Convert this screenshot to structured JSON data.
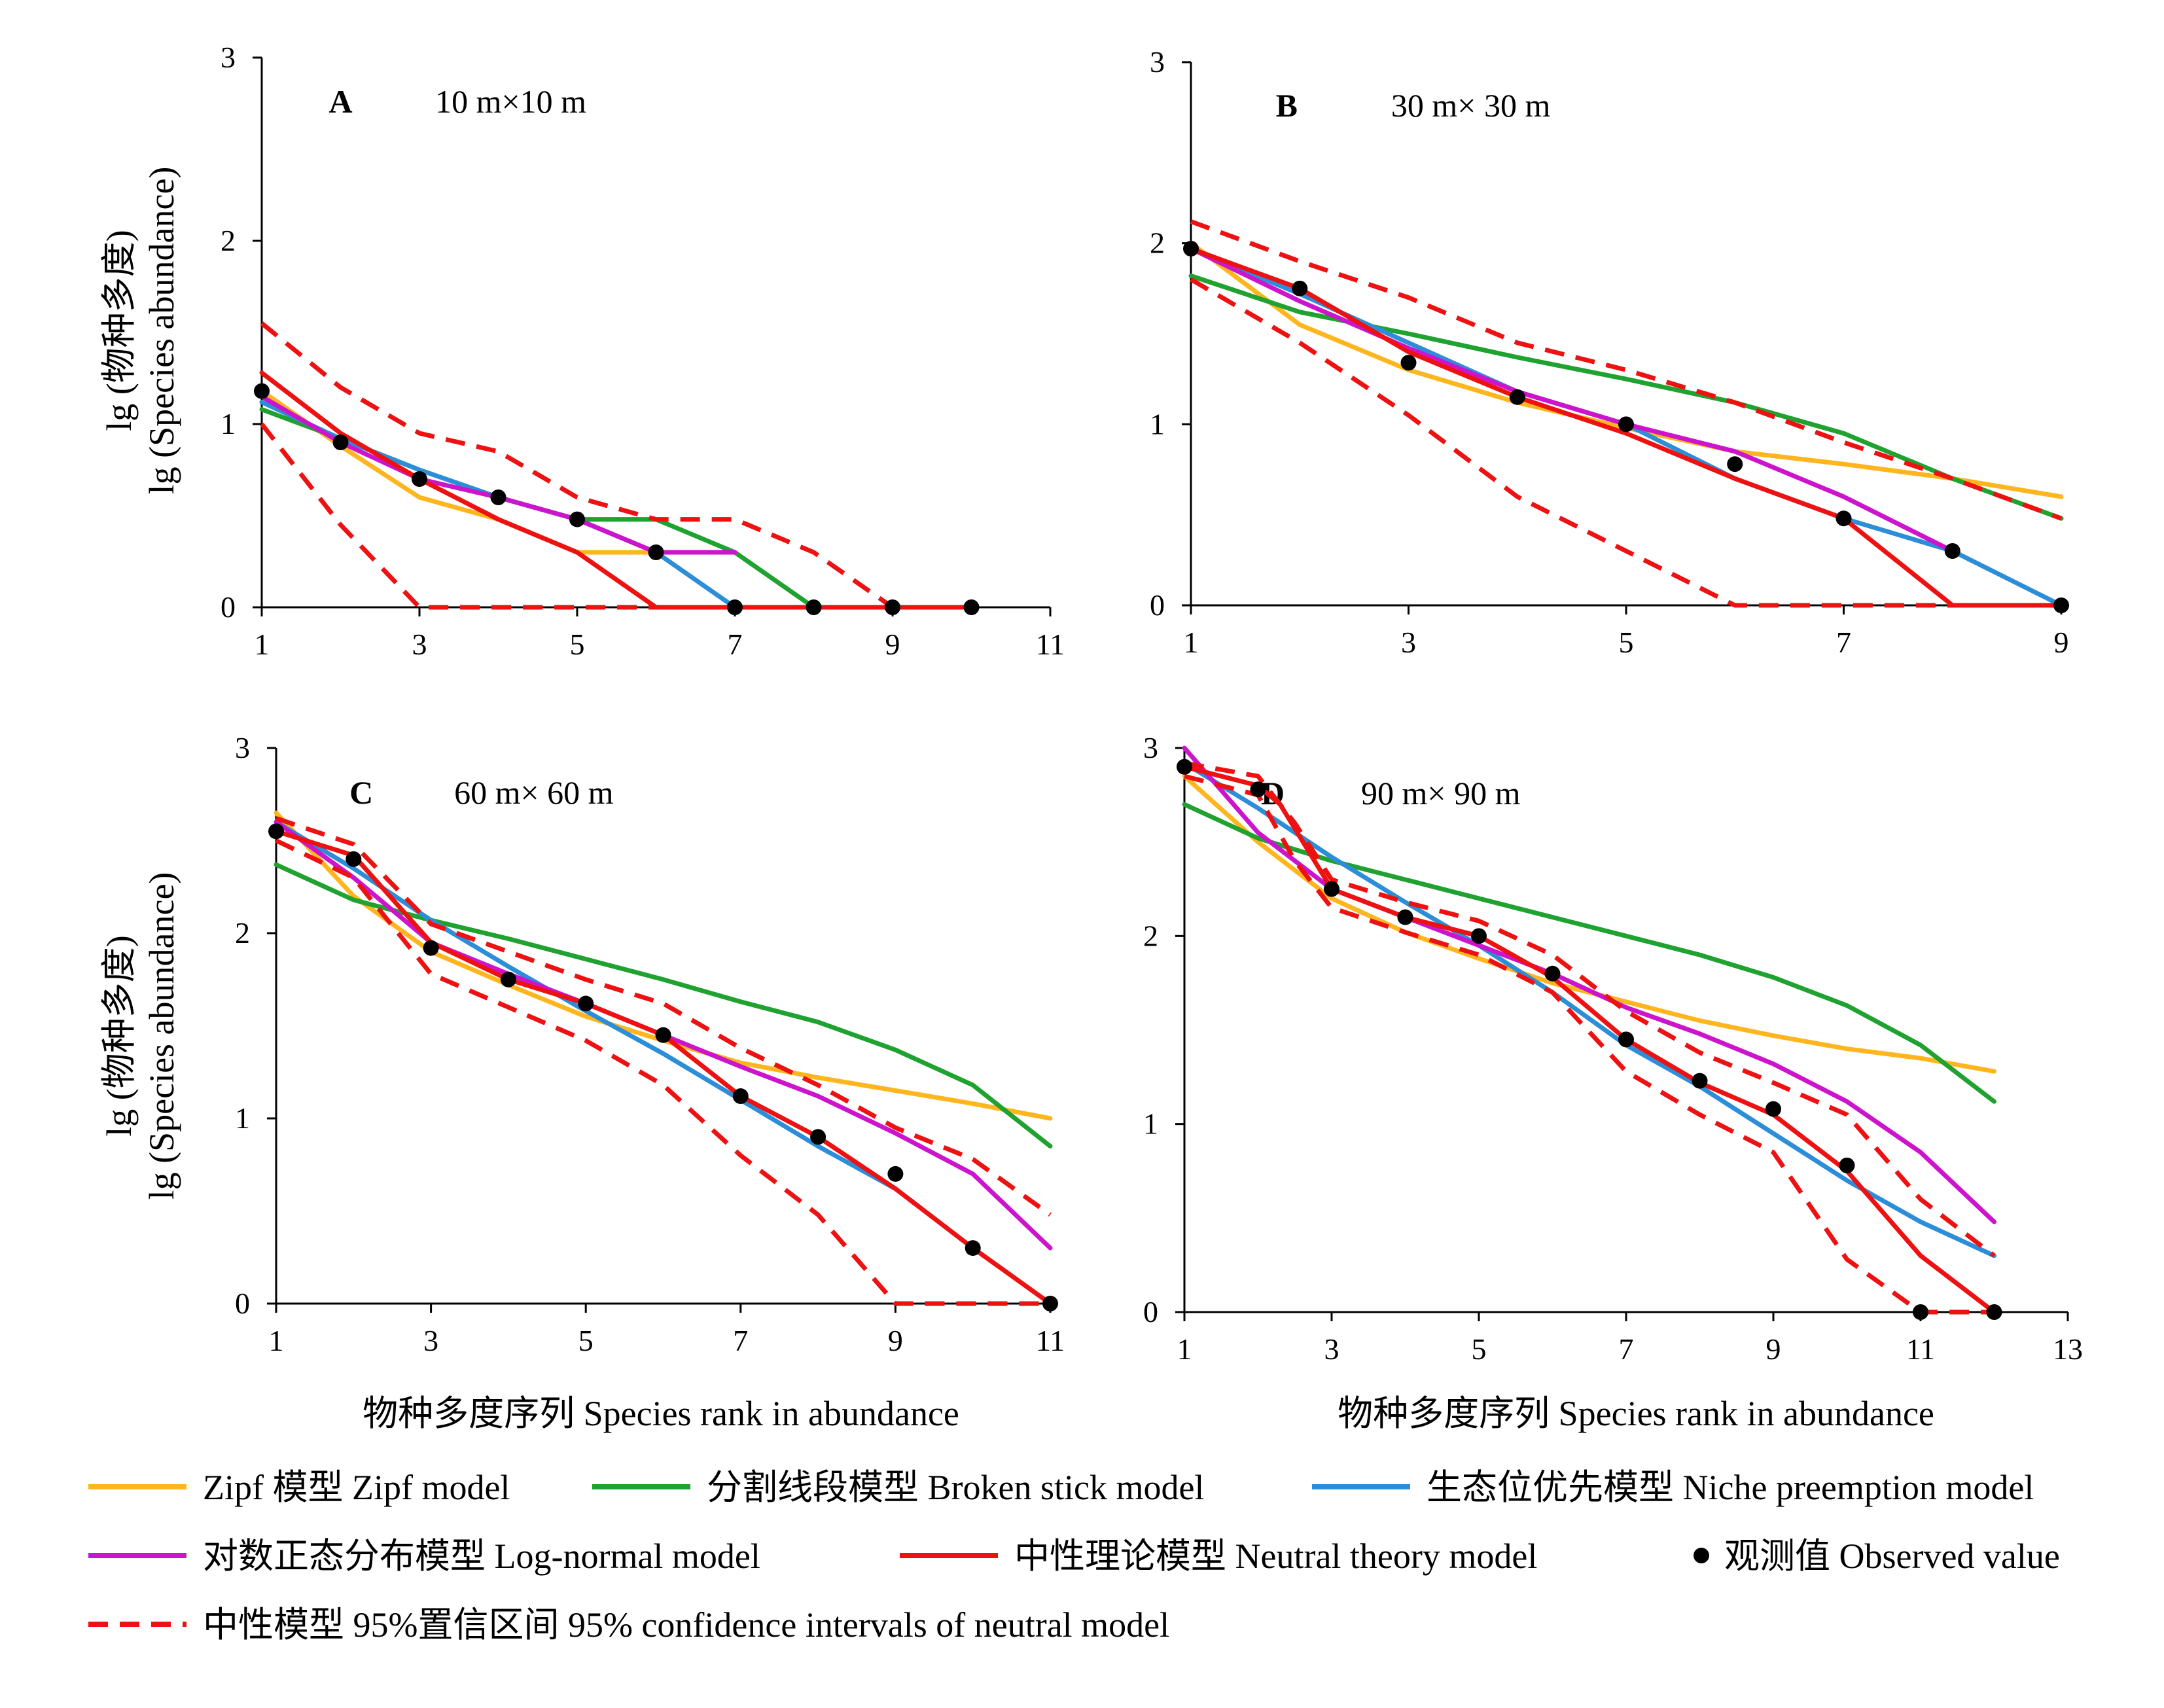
{
  "colors": {
    "zipf": "#FFB61E",
    "broken": "#1FA22F",
    "niche": "#2C8ED8",
    "lognormal": "#CC14CC",
    "neutral": "#EE1111",
    "ci": "#EE1111",
    "observed": "#000000",
    "axis": "#000000"
  },
  "axis_text": {
    "y_label_cn": "lg (物种多度)",
    "y_label_en": "lg (Species abundance)",
    "x_label": "物种多度序列  Species rank in abundance"
  },
  "legend": [
    {
      "key": "zipf",
      "label": "Zipf 模型  Zipf model",
      "style": "line"
    },
    {
      "key": "broken",
      "label": "分割线段模型  Broken stick model",
      "style": "line"
    },
    {
      "key": "niche",
      "label": "生态位优先模型 Niche preemption model",
      "style": "line"
    },
    {
      "key": "lognormal",
      "label": "对数正态分布模型  Log-normal model",
      "style": "line"
    },
    {
      "key": "neutral",
      "label": "中性理论模型  Neutral theory model",
      "style": "line"
    },
    {
      "key": "observed",
      "label": "观测值  Observed value",
      "style": "dot"
    },
    {
      "key": "ci",
      "label": "中性模型 95%置信区间  95% confidence intervals of neutral model",
      "style": "dash"
    }
  ],
  "chart_data": [
    {
      "type": "line",
      "panel": "A",
      "plot_size": "10 m×10 m",
      "xlim": [
        1,
        11
      ],
      "xticks": [
        "1",
        "3",
        "5",
        "7",
        "9",
        "11"
      ],
      "ylim": [
        0,
        3
      ],
      "yticks": [
        "0",
        "1",
        "2",
        "3"
      ],
      "grid": false,
      "series": [
        {
          "key": "zipf",
          "x": [
            1,
            2,
            3,
            4,
            5,
            6,
            7
          ],
          "y": [
            1.18,
            0.88,
            0.6,
            0.48,
            0.3,
            0.3,
            0.3
          ]
        },
        {
          "key": "broken",
          "x": [
            1,
            2,
            3,
            4,
            5,
            6,
            7,
            8
          ],
          "y": [
            1.08,
            0.92,
            0.75,
            0.6,
            0.48,
            0.48,
            0.3,
            0
          ]
        },
        {
          "key": "niche",
          "x": [
            1,
            2,
            3,
            4,
            5,
            6,
            7
          ],
          "y": [
            1.12,
            0.92,
            0.75,
            0.6,
            0.48,
            0.3,
            0
          ]
        },
        {
          "key": "lognormal",
          "x": [
            1,
            2,
            3,
            4,
            5,
            6,
            7
          ],
          "y": [
            1.15,
            0.9,
            0.7,
            0.6,
            0.48,
            0.3,
            0.3
          ]
        },
        {
          "key": "neutral",
          "x": [
            1,
            2,
            3,
            4,
            5,
            6,
            7,
            8,
            9,
            10
          ],
          "y": [
            1.28,
            0.95,
            0.7,
            0.48,
            0.3,
            0,
            0,
            0,
            0,
            0
          ]
        },
        {
          "key": "ci_upper",
          "x": [
            1,
            2,
            3,
            4,
            5,
            6,
            7,
            8,
            9,
            10
          ],
          "y": [
            1.55,
            1.2,
            0.95,
            0.85,
            0.6,
            0.48,
            0.48,
            0.3,
            0,
            0
          ]
        },
        {
          "key": "ci_lower",
          "x": [
            1,
            2,
            3,
            4,
            5,
            6,
            7,
            8,
            9,
            10
          ],
          "y": [
            1.0,
            0.45,
            0,
            0,
            0,
            0,
            0,
            0,
            0,
            0
          ]
        },
        {
          "key": "observed",
          "x": [
            1,
            2,
            3,
            4,
            5,
            6,
            7,
            8,
            9,
            10
          ],
          "y": [
            1.18,
            0.9,
            0.7,
            0.6,
            0.48,
            0.3,
            0,
            0,
            0,
            0
          ]
        }
      ]
    },
    {
      "type": "line",
      "panel": "B",
      "plot_size": "30 m× 30 m",
      "xlim": [
        1,
        9
      ],
      "xticks": [
        "1",
        "3",
        "5",
        "7",
        "9"
      ],
      "ylim": [
        0,
        3
      ],
      "yticks": [
        "0",
        "1",
        "2",
        "3"
      ],
      "grid": false,
      "series": [
        {
          "key": "zipf",
          "x": [
            1,
            2,
            3,
            4,
            5,
            6,
            7,
            8,
            9
          ],
          "y": [
            2.0,
            1.55,
            1.3,
            1.12,
            0.98,
            0.85,
            0.78,
            0.7,
            0.6
          ]
        },
        {
          "key": "broken",
          "x": [
            1,
            2,
            3,
            4,
            5,
            6,
            7,
            8,
            9
          ],
          "y": [
            1.82,
            1.62,
            1.5,
            1.37,
            1.25,
            1.12,
            0.95,
            0.7,
            0.48
          ]
        },
        {
          "key": "niche",
          "x": [
            1,
            2,
            3,
            4,
            5,
            6,
            7,
            8,
            9
          ],
          "y": [
            1.97,
            1.72,
            1.45,
            1.18,
            1.0,
            0.7,
            0.48,
            0.3,
            0
          ]
        },
        {
          "key": "lognormal",
          "x": [
            1,
            2,
            3,
            4,
            5,
            6,
            7,
            8
          ],
          "y": [
            1.97,
            1.68,
            1.42,
            1.18,
            1.0,
            0.85,
            0.6,
            0.3
          ]
        },
        {
          "key": "neutral",
          "x": [
            1,
            2,
            3,
            4,
            5,
            6,
            7,
            8,
            9
          ],
          "y": [
            1.97,
            1.75,
            1.4,
            1.15,
            0.95,
            0.7,
            0.48,
            0,
            0
          ]
        },
        {
          "key": "ci_upper",
          "x": [
            1,
            2,
            3,
            4,
            5,
            6,
            7,
            8,
            9
          ],
          "y": [
            2.12,
            1.9,
            1.7,
            1.45,
            1.3,
            1.12,
            0.9,
            0.7,
            0.48
          ]
        },
        {
          "key": "ci_lower",
          "x": [
            1,
            2,
            3,
            4,
            5,
            6,
            7,
            8,
            9
          ],
          "y": [
            1.8,
            1.45,
            1.05,
            0.6,
            0.3,
            0,
            0,
            0,
            0
          ]
        },
        {
          "key": "observed",
          "x": [
            1,
            2,
            3,
            4,
            5,
            6,
            7,
            8,
            9
          ],
          "y": [
            1.97,
            1.75,
            1.34,
            1.15,
            1.0,
            0.78,
            0.48,
            0.3,
            0
          ]
        }
      ]
    },
    {
      "type": "line",
      "panel": "C",
      "plot_size": "60 m× 60 m",
      "xlim": [
        1,
        11
      ],
      "xticks": [
        "1",
        "3",
        "5",
        "7",
        "9",
        "11"
      ],
      "ylim": [
        0,
        3
      ],
      "yticks": [
        "0",
        "1",
        "2",
        "3"
      ],
      "grid": false,
      "series": [
        {
          "key": "zipf",
          "x": [
            1,
            2,
            3,
            4,
            5,
            6,
            7,
            8,
            9,
            10,
            11
          ],
          "y": [
            2.65,
            2.2,
            1.9,
            1.72,
            1.55,
            1.42,
            1.3,
            1.22,
            1.15,
            1.08,
            1.0
          ]
        },
        {
          "key": "broken",
          "x": [
            1,
            2,
            3,
            4,
            5,
            6,
            7,
            8,
            9,
            10,
            11
          ],
          "y": [
            2.37,
            2.18,
            2.07,
            1.97,
            1.86,
            1.75,
            1.63,
            1.52,
            1.37,
            1.18,
            0.85
          ]
        },
        {
          "key": "niche",
          "x": [
            1,
            2,
            3,
            4,
            5,
            6,
            7,
            8,
            9,
            10
          ],
          "y": [
            2.6,
            2.35,
            2.07,
            1.82,
            1.58,
            1.35,
            1.1,
            0.85,
            0.62,
            0.3
          ]
        },
        {
          "key": "lognormal",
          "x": [
            1,
            2,
            3,
            4,
            5,
            6,
            7,
            8,
            9,
            10,
            11
          ],
          "y": [
            2.6,
            2.3,
            1.95,
            1.78,
            1.62,
            1.45,
            1.28,
            1.12,
            0.92,
            0.7,
            0.3
          ]
        },
        {
          "key": "neutral",
          "x": [
            1,
            2,
            3,
            4,
            5,
            6,
            7,
            8,
            9,
            10,
            11
          ],
          "y": [
            2.55,
            2.42,
            1.95,
            1.75,
            1.62,
            1.45,
            1.12,
            0.9,
            0.62,
            0.3,
            0
          ]
        },
        {
          "key": "ci_upper",
          "x": [
            1,
            2,
            3,
            4,
            5,
            6,
            7,
            8,
            9,
            10,
            11
          ],
          "y": [
            2.62,
            2.48,
            2.05,
            1.9,
            1.75,
            1.62,
            1.38,
            1.18,
            0.95,
            0.78,
            0.48
          ]
        },
        {
          "key": "ci_lower",
          "x": [
            1,
            2,
            3,
            4,
            5,
            6,
            7,
            8,
            9,
            10,
            11
          ],
          "y": [
            2.5,
            2.3,
            1.78,
            1.6,
            1.42,
            1.18,
            0.8,
            0.48,
            0,
            0,
            0
          ]
        },
        {
          "key": "observed",
          "x": [
            1,
            2,
            3,
            4,
            5,
            6,
            7,
            8,
            9,
            10,
            11
          ],
          "y": [
            2.55,
            2.4,
            1.92,
            1.75,
            1.62,
            1.45,
            1.12,
            0.9,
            0.7,
            0.3,
            0
          ]
        }
      ]
    },
    {
      "type": "line",
      "panel": "D",
      "plot_size": "90 m× 90 m",
      "xlim": [
        1,
        13
      ],
      "xticks": [
        "1",
        "3",
        "5",
        "7",
        "9",
        "11",
        "13"
      ],
      "ylim": [
        0,
        3
      ],
      "yticks": [
        "0",
        "1",
        "2",
        "3"
      ],
      "grid": false,
      "series": [
        {
          "key": "zipf",
          "x": [
            1,
            2,
            3,
            4,
            5,
            6,
            7,
            8,
            9,
            10,
            11,
            12
          ],
          "y": [
            2.85,
            2.5,
            2.2,
            2.02,
            1.88,
            1.75,
            1.65,
            1.55,
            1.47,
            1.4,
            1.35,
            1.28
          ]
        },
        {
          "key": "broken",
          "x": [
            1,
            2,
            3,
            4,
            5,
            6,
            7,
            8,
            9,
            10,
            11,
            12
          ],
          "y": [
            2.7,
            2.52,
            2.4,
            2.3,
            2.2,
            2.1,
            2.0,
            1.9,
            1.78,
            1.63,
            1.42,
            1.12
          ]
        },
        {
          "key": "niche",
          "x": [
            1,
            2,
            3,
            4,
            5,
            6,
            7,
            8,
            9,
            10,
            11,
            12
          ],
          "y": [
            2.92,
            2.68,
            2.42,
            2.18,
            1.95,
            1.7,
            1.42,
            1.2,
            0.95,
            0.7,
            0.48,
            0.3
          ]
        },
        {
          "key": "lognormal",
          "x": [
            1,
            2,
            3,
            4,
            5,
            6,
            7,
            8,
            9,
            10,
            11,
            12
          ],
          "y": [
            3.0,
            2.55,
            2.25,
            2.1,
            1.95,
            1.8,
            1.62,
            1.48,
            1.32,
            1.12,
            0.85,
            0.48
          ]
        },
        {
          "key": "neutral",
          "x": [
            1,
            1.5,
            2,
            2.3,
            3,
            4,
            5,
            6,
            7,
            8,
            9,
            10,
            11,
            12
          ],
          "y": [
            2.9,
            2.85,
            2.8,
            2.7,
            2.25,
            2.1,
            2.0,
            1.78,
            1.45,
            1.22,
            1.05,
            0.75,
            0.3,
            0
          ]
        },
        {
          "key": "ci_upper",
          "x": [
            1,
            2,
            2.5,
            3,
            4,
            5,
            6,
            7,
            8,
            9,
            10,
            11,
            12
          ],
          "y": [
            2.92,
            2.85,
            2.6,
            2.3,
            2.18,
            2.08,
            1.9,
            1.6,
            1.38,
            1.22,
            1.05,
            0.6,
            0.3
          ]
        },
        {
          "key": "ci_lower",
          "x": [
            1,
            2,
            2.5,
            3,
            4,
            5,
            6,
            7,
            8,
            9,
            10,
            11,
            12
          ],
          "y": [
            2.85,
            2.75,
            2.4,
            2.15,
            2.02,
            1.9,
            1.7,
            1.28,
            1.05,
            0.85,
            0.28,
            0,
            0
          ]
        },
        {
          "key": "observed",
          "x": [
            1,
            2,
            3,
            4,
            5,
            6,
            7,
            8,
            9,
            10,
            11,
            12
          ],
          "y": [
            2.9,
            2.78,
            2.25,
            2.1,
            2.0,
            1.8,
            1.45,
            1.23,
            1.08,
            0.78,
            0,
            0
          ]
        }
      ]
    }
  ]
}
